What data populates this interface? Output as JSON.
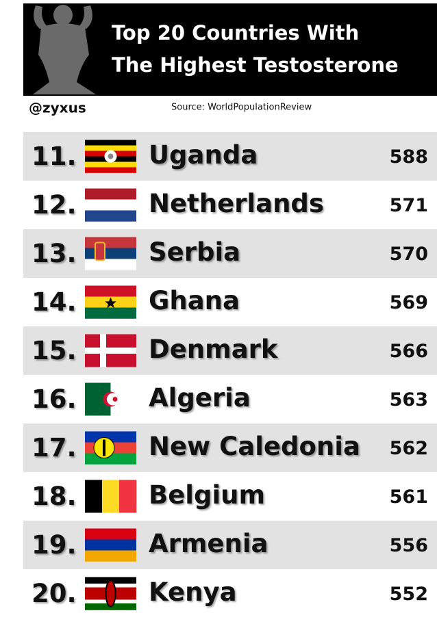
{
  "header": {
    "title": [
      "Top 20 Countries With",
      "The Highest Testosterone"
    ],
    "handle": "@zyxus",
    "source": "Source: WorldPopulationReview"
  },
  "table": {
    "rows": [
      [
        "11.",
        "Uganda",
        588
      ],
      [
        "12.",
        "Netherlands",
        571
      ],
      [
        "13.",
        "Serbia",
        570
      ],
      [
        "14.",
        "Ghana",
        569
      ],
      [
        "15.",
        "Denmark",
        566
      ],
      [
        "16.",
        "Algeria",
        563
      ],
      [
        "17.",
        "New Caledonia",
        562
      ],
      [
        "18.",
        "Belgium",
        561
      ],
      [
        "19.",
        "Armenia",
        556
      ],
      [
        "20.",
        "Kenya",
        552
      ]
    ]
  }
}
